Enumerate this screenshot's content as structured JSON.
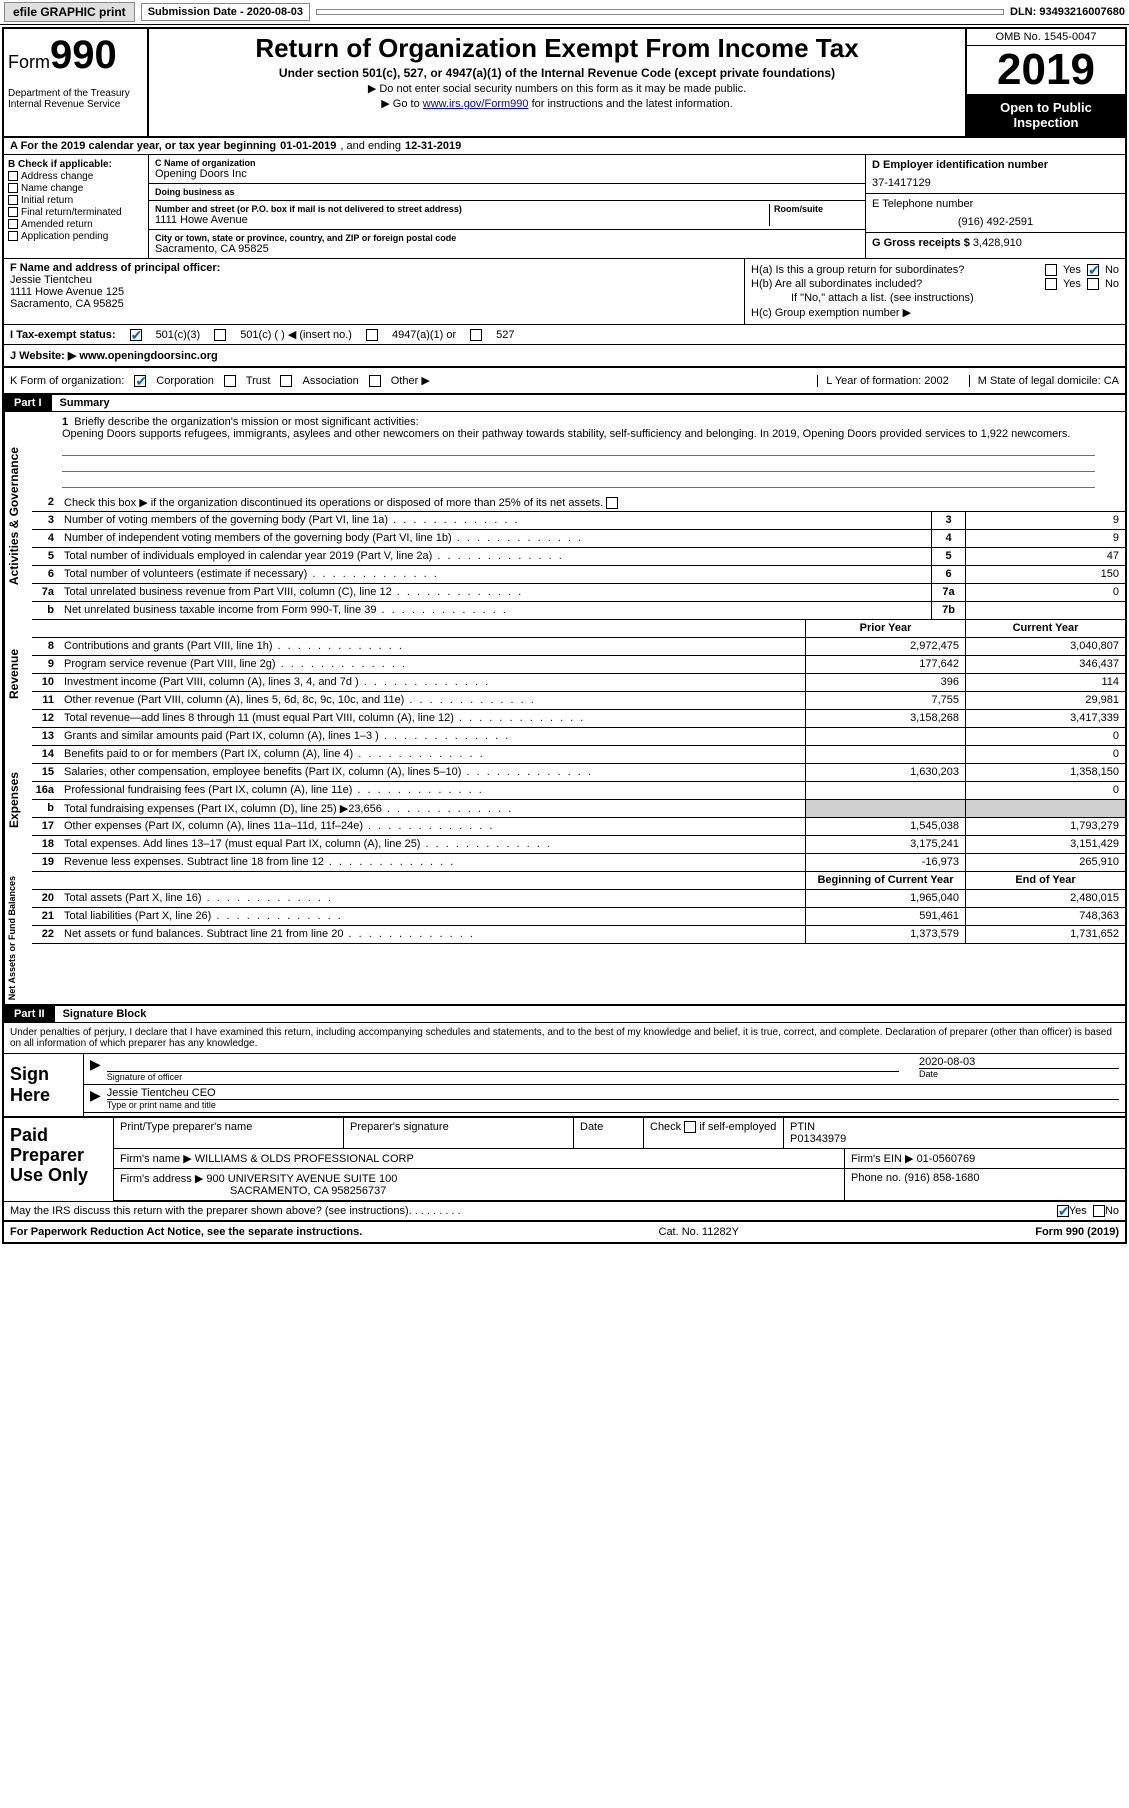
{
  "topbar": {
    "efile": "efile GRAPHIC print",
    "submission_label": "Submission Date - 2020-08-03",
    "dln": "DLN: 93493216007680"
  },
  "header": {
    "form_word": "Form",
    "form_num": "990",
    "dept": "Department of the Treasury\nInternal Revenue Service",
    "title": "Return of Organization Exempt From Income Tax",
    "subtitle": "Under section 501(c), 527, or 4947(a)(1) of the Internal Revenue Code (except private foundations)",
    "note1": "▶ Do not enter social security numbers on this form as it may be made public.",
    "note2_pre": "▶ Go to ",
    "note2_link": "www.irs.gov/Form990",
    "note2_post": " for instructions and the latest information.",
    "omb": "OMB No. 1545-0047",
    "year": "2019",
    "inspect": "Open to Public Inspection"
  },
  "rowA": {
    "text_pre": "A For the 2019 calendar year, or tax year beginning ",
    "begin": "01-01-2019",
    "mid": " , and ending ",
    "end": "12-31-2019"
  },
  "B": {
    "lbl": "B Check if applicable:",
    "opts": [
      "Address change",
      "Name change",
      "Initial return",
      "Final return/terminated",
      "Amended return",
      "Application pending"
    ]
  },
  "C": {
    "name_lbl": "C Name of organization",
    "name": "Opening Doors Inc",
    "dba_lbl": "Doing business as",
    "dba": "",
    "addr_lbl": "Number and street (or P.O. box if mail is not delivered to street address)",
    "room_lbl": "Room/suite",
    "addr": "1111 Howe Avenue",
    "city_lbl": "City or town, state or province, country, and ZIP or foreign postal code",
    "city": "Sacramento, CA  95825"
  },
  "D": {
    "lbl": "D Employer identification number",
    "val": "37-1417129"
  },
  "E": {
    "lbl": "E Telephone number",
    "val": "(916) 492-2591"
  },
  "G": {
    "lbl": "G Gross receipts $",
    "val": "3,428,910"
  },
  "F": {
    "lbl": "F  Name and address of principal officer:",
    "name": "Jessie Tientcheu",
    "addr1": "1111 Howe Avenue 125",
    "addr2": "Sacramento, CA  95825"
  },
  "H": {
    "a": "H(a)  Is this a group return for subordinates?",
    "b": "H(b)  Are all subordinates included?",
    "bnote": "If \"No,\" attach a list. (see instructions)",
    "c": "H(c)  Group exemption number ▶",
    "yes": "Yes",
    "no": "No"
  },
  "I": {
    "lbl": "I    Tax-exempt status:",
    "o1": "501(c)(3)",
    "o2": "501(c) (   ) ◀ (insert no.)",
    "o3": "4947(a)(1) or",
    "o4": "527"
  },
  "J": {
    "lbl": "J   Website: ▶",
    "val": "www.openingdoorsinc.org"
  },
  "K": {
    "lbl": "K Form of organization:",
    "o1": "Corporation",
    "o2": "Trust",
    "o3": "Association",
    "o4": "Other ▶",
    "L": "L Year of formation: 2002",
    "M": "M State of legal domicile: CA"
  },
  "partI": {
    "hdr": "Part I",
    "title": "Summary"
  },
  "vlabels": {
    "act": "Activities & Governance",
    "rev": "Revenue",
    "exp": "Expenses",
    "net": "Net Assets or Fund Balances"
  },
  "q1": {
    "num": "1",
    "lbl": "Briefly describe the organization's mission or most significant activities:",
    "text": "Opening Doors supports refugees, immigrants, asylees and other newcomers on their pathway towards stability, self-sufficiency and belonging. In 2019, Opening Doors provided services to 1,922 newcomers."
  },
  "q2": {
    "num": "2",
    "text": "Check this box ▶      if the organization discontinued its operations or disposed of more than 25% of its net assets."
  },
  "lines_gov": [
    {
      "n": "3",
      "d": "Number of voting members of the governing body (Part VI, line 1a)",
      "box": "3",
      "v": "9"
    },
    {
      "n": "4",
      "d": "Number of independent voting members of the governing body (Part VI, line 1b)",
      "box": "4",
      "v": "9"
    },
    {
      "n": "5",
      "d": "Total number of individuals employed in calendar year 2019 (Part V, line 2a)",
      "box": "5",
      "v": "47"
    },
    {
      "n": "6",
      "d": "Total number of volunteers (estimate if necessary)",
      "box": "6",
      "v": "150"
    },
    {
      "n": "7a",
      "d": "Total unrelated business revenue from Part VIII, column (C), line 12",
      "box": "7a",
      "v": "0"
    },
    {
      "n": "b",
      "d": "Net unrelated business taxable income from Form 990-T, line 39",
      "box": "7b",
      "v": ""
    }
  ],
  "colhdr": {
    "py": "Prior Year",
    "cy": "Current Year"
  },
  "lines_rev": [
    {
      "n": "8",
      "d": "Contributions and grants (Part VIII, line 1h)",
      "py": "2,972,475",
      "cy": "3,040,807"
    },
    {
      "n": "9",
      "d": "Program service revenue (Part VIII, line 2g)",
      "py": "177,642",
      "cy": "346,437"
    },
    {
      "n": "10",
      "d": "Investment income (Part VIII, column (A), lines 3, 4, and 7d )",
      "py": "396",
      "cy": "114"
    },
    {
      "n": "11",
      "d": "Other revenue (Part VIII, column (A), lines 5, 6d, 8c, 9c, 10c, and 11e)",
      "py": "7,755",
      "cy": "29,981"
    },
    {
      "n": "12",
      "d": "Total revenue—add lines 8 through 11 (must equal Part VIII, column (A), line 12)",
      "py": "3,158,268",
      "cy": "3,417,339"
    }
  ],
  "lines_exp": [
    {
      "n": "13",
      "d": "Grants and similar amounts paid (Part IX, column (A), lines 1–3 )",
      "py": "",
      "cy": "0"
    },
    {
      "n": "14",
      "d": "Benefits paid to or for members (Part IX, column (A), line 4)",
      "py": "",
      "cy": "0"
    },
    {
      "n": "15",
      "d": "Salaries, other compensation, employee benefits (Part IX, column (A), lines 5–10)",
      "py": "1,630,203",
      "cy": "1,358,150"
    },
    {
      "n": "16a",
      "d": "Professional fundraising fees (Part IX, column (A), line 11e)",
      "py": "",
      "cy": "0"
    },
    {
      "n": "b",
      "d": "Total fundraising expenses (Part IX, column (D), line 25) ▶23,656",
      "py": "SHADE",
      "cy": "SHADE"
    },
    {
      "n": "17",
      "d": "Other expenses (Part IX, column (A), lines 11a–11d, 11f–24e)",
      "py": "1,545,038",
      "cy": "1,793,279"
    },
    {
      "n": "18",
      "d": "Total expenses. Add lines 13–17 (must equal Part IX, column (A), line 25)",
      "py": "3,175,241",
      "cy": "3,151,429"
    },
    {
      "n": "19",
      "d": "Revenue less expenses. Subtract line 18 from line 12",
      "py": "-16,973",
      "cy": "265,910"
    }
  ],
  "colhdr2": {
    "b": "Beginning of Current Year",
    "e": "End of Year"
  },
  "lines_net": [
    {
      "n": "20",
      "d": "Total assets (Part X, line 16)",
      "py": "1,965,040",
      "cy": "2,480,015"
    },
    {
      "n": "21",
      "d": "Total liabilities (Part X, line 26)",
      "py": "591,461",
      "cy": "748,363"
    },
    {
      "n": "22",
      "d": "Net assets or fund balances. Subtract line 21 from line 20",
      "py": "1,373,579",
      "cy": "1,731,652"
    }
  ],
  "partII": {
    "hdr": "Part II",
    "title": "Signature Block"
  },
  "sig": {
    "decl": "Under penalties of perjury, I declare that I have examined this return, including accompanying schedules and statements, and to the best of my knowledge and belief, it is true, correct, and complete. Declaration of preparer (other than officer) is based on all information of which preparer has any knowledge.",
    "sign_here": "Sign Here",
    "sig_officer": "Signature of officer",
    "date": "2020-08-03",
    "date_lbl": "Date",
    "name_title": "Jessie Tientcheu CEO",
    "name_title_lbl": "Type or print name and title"
  },
  "paid": {
    "title": "Paid Preparer Use Only",
    "h1": "Print/Type preparer's name",
    "h2": "Preparer's signature",
    "h3": "Date",
    "h4a": "Check",
    "h4b": "if self-employed",
    "h5": "PTIN",
    "ptin": "P01343979",
    "firm_lbl": "Firm's name     ▶",
    "firm": "WILLIAMS & OLDS PROFESSIONAL CORP",
    "ein_lbl": "Firm's EIN ▶",
    "ein": "01-0560769",
    "addr_lbl": "Firm's address ▶",
    "addr1": "900 UNIVERSITY AVENUE SUITE 100",
    "addr2": "SACRAMENTO, CA  958256737",
    "phone_lbl": "Phone no.",
    "phone": "(916) 858-1680"
  },
  "discuss": {
    "q": "May the IRS discuss this return with the preparer shown above? (see instructions)",
    "yes": "Yes",
    "no": "No"
  },
  "footer": {
    "left": "For Paperwork Reduction Act Notice, see the separate instructions.",
    "mid": "Cat. No. 11282Y",
    "right": "Form 990 (2019)"
  }
}
